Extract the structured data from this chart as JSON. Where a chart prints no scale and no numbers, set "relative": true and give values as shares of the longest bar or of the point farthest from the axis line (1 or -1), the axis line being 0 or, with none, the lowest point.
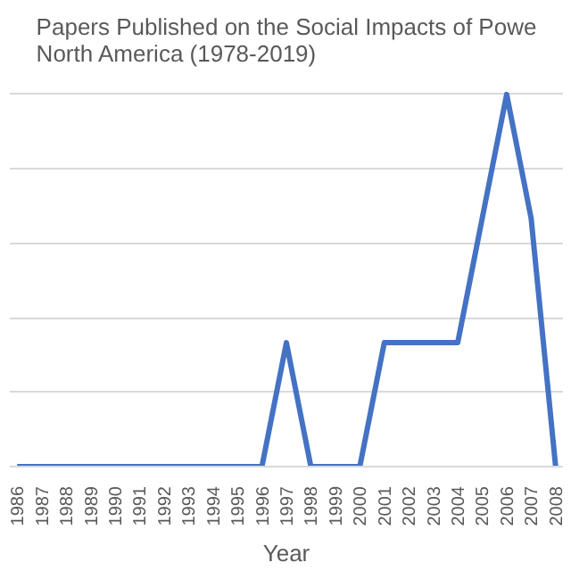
{
  "chart_data": {
    "type": "line",
    "title": "Papers Published on the Social Impacts of Powe\nNorth America (1978-2019)",
    "xlabel": "Year",
    "categories": [
      "1986",
      "1987",
      "1988",
      "1989",
      "1990",
      "1991",
      "1992",
      "1993",
      "1994",
      "1995",
      "1996",
      "1997",
      "1998",
      "1999",
      "2000",
      "2001",
      "2002",
      "2003",
      "2004",
      "2005",
      "2006",
      "2007",
      "2008"
    ],
    "series": [
      {
        "color": "#4472c4",
        "values": [
          0,
          0,
          0,
          0,
          0,
          0,
          0,
          0,
          0,
          0,
          0,
          0.333,
          0,
          0,
          0,
          0.333,
          0.333,
          0.333,
          0.333,
          0.667,
          1,
          0.667,
          0
        ]
      }
    ],
    "relative": true,
    "grid": "y",
    "marker": "none",
    "line_style": "solid"
  }
}
